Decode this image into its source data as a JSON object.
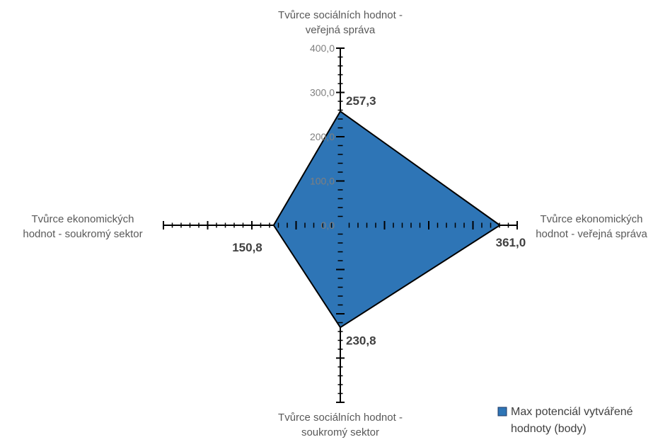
{
  "chart_data": {
    "type": "radar",
    "axes": [
      {
        "label_lines": [
          "Tvůrce sociálních  hodnot -",
          "veřejná správa"
        ],
        "value": 257.3,
        "value_label": "257,3"
      },
      {
        "label_lines": [
          "Tvůrce ekonomických",
          "hodnot - veřejná správa"
        ],
        "value": 361.0,
        "value_label": "361,0"
      },
      {
        "label_lines": [
          "Tvůrce sociálních  hodnot -",
          "soukromý sektor"
        ],
        "value": 230.8,
        "value_label": "230,8"
      },
      {
        "label_lines": [
          "Tvůrce ekonomických",
          "hodnot - soukromý sektor"
        ],
        "value": 150.8,
        "value_label": "150,8"
      }
    ],
    "scale": {
      "min": 0,
      "max": 400,
      "major_step": 100,
      "minor_step": 20
    },
    "tick_labels": [
      "0,0",
      "100,0",
      "200,0",
      "300,0",
      "400,0"
    ],
    "series": [
      {
        "name": "Max potenciál vytvářené hodnoty (body)",
        "name_lines": [
          "Max potenciál vytvářené",
          "hodnoty (body)"
        ],
        "color": "#2e75b6",
        "outline": "#000000"
      }
    ],
    "legend_position": "bottom-right"
  }
}
